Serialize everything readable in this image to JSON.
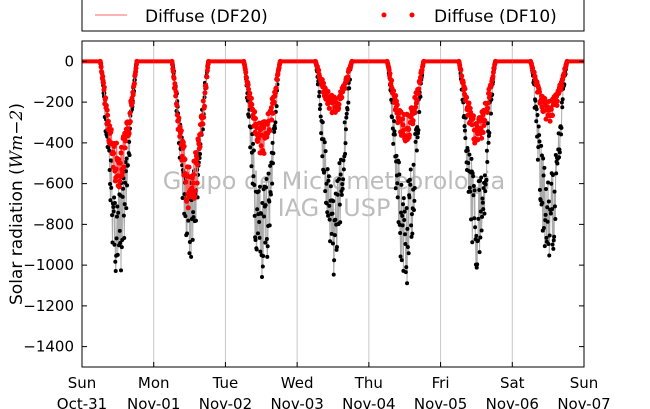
{
  "chart_data": {
    "type": "line",
    "ylabel_prefix": "Solar radiation (",
    "ylabel_math": "Wm−2",
    "ylabel_suffix": ")",
    "ylim": [
      -1500,
      100
    ],
    "yticks": [
      0,
      -200,
      -400,
      -600,
      -800,
      -1000,
      -1200,
      -1400
    ],
    "xlim": [
      "2015-10-31",
      "2015-11-07"
    ],
    "xticks": [
      {
        "day": "Sun",
        "date": "Oct-31"
      },
      {
        "day": "Mon",
        "date": "Nov-01"
      },
      {
        "day": "Tue",
        "date": "Nov-02"
      },
      {
        "day": "Wed",
        "date": "Nov-03"
      },
      {
        "day": "Thu",
        "date": "Nov-04"
      },
      {
        "day": "Fri",
        "date": "Nov-05"
      },
      {
        "day": "Sat",
        "date": "Nov-06"
      },
      {
        "day": "Sun",
        "date": "Nov-07"
      }
    ],
    "grid": "vertical",
    "legend": "top",
    "watermark": [
      "Grupo de Micrometeorologia",
      "IAG - USP"
    ],
    "series": [
      {
        "name": "Diffuse (DF20)",
        "style": "line",
        "color": "#ff6666",
        "description": "thin red line"
      },
      {
        "name": "Diffuse (DF10)",
        "style": "dots",
        "color": "#ff0000"
      },
      {
        "name": "",
        "style": "dots",
        "color": "#000000",
        "connector_color": "#aaaaaa"
      }
    ],
    "daily": [
      {
        "day_offset": 0,
        "global_min": -1110,
        "diffuse_min": -620
      },
      {
        "day_offset": 1,
        "global_min": -980,
        "diffuse_min": -740
      },
      {
        "day_offset": 2,
        "global_min": -1140,
        "diffuse_min": -460
      },
      {
        "day_offset": 3,
        "global_min": -1060,
        "diffuse_min": -260
      },
      {
        "day_offset": 4,
        "global_min": -1110,
        "diffuse_min": -400
      },
      {
        "day_offset": 5,
        "global_min": -1020,
        "diffuse_min": -420
      },
      {
        "day_offset": 6,
        "global_min": -1030,
        "diffuse_min": -300
      }
    ]
  }
}
